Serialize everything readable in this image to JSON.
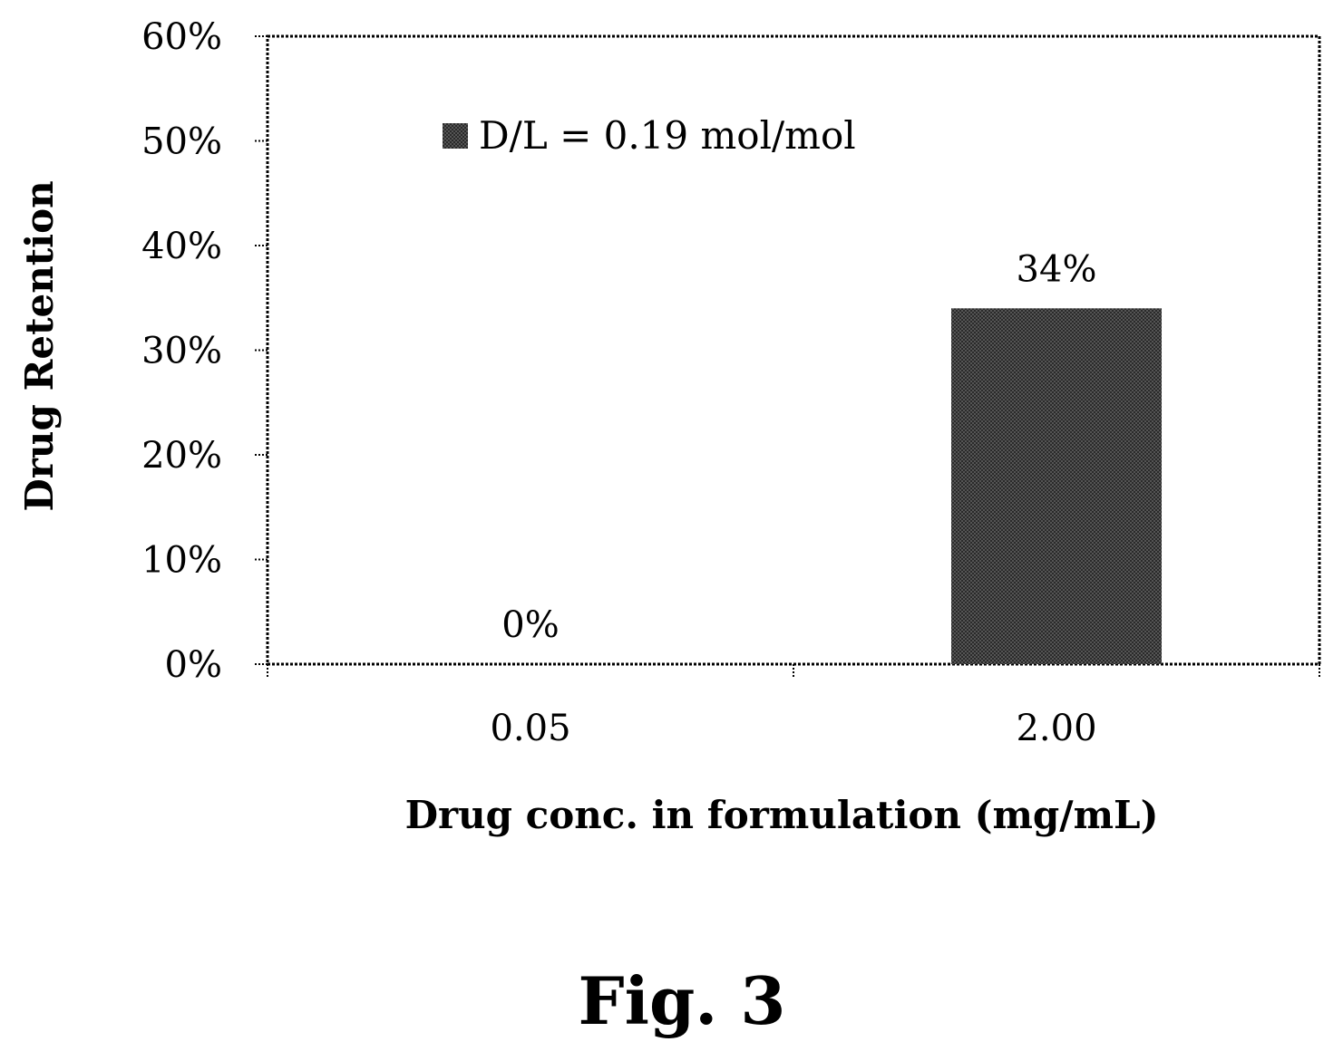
{
  "chart_data": {
    "type": "bar",
    "categories": [
      "0.05",
      "2.00"
    ],
    "series": [
      {
        "name": "D/L = 0.19 mol/mol",
        "values": [
          0,
          34
        ]
      }
    ],
    "data_labels": [
      "0%",
      "34%"
    ],
    "xlabel": "Drug conc. in formulation (mg/mL)",
    "ylabel": "Drug Retention",
    "ylim": [
      0,
      60
    ],
    "y_ticks": [
      0,
      10,
      20,
      30,
      40,
      50,
      60
    ],
    "y_tick_labels": [
      "0%",
      "10%",
      "20%",
      "30%",
      "40%",
      "50%",
      "60%"
    ],
    "legend_position": "top-left",
    "grid": false,
    "bar_fill": "crosshatch dark gray"
  },
  "caption": "Fig. 3"
}
